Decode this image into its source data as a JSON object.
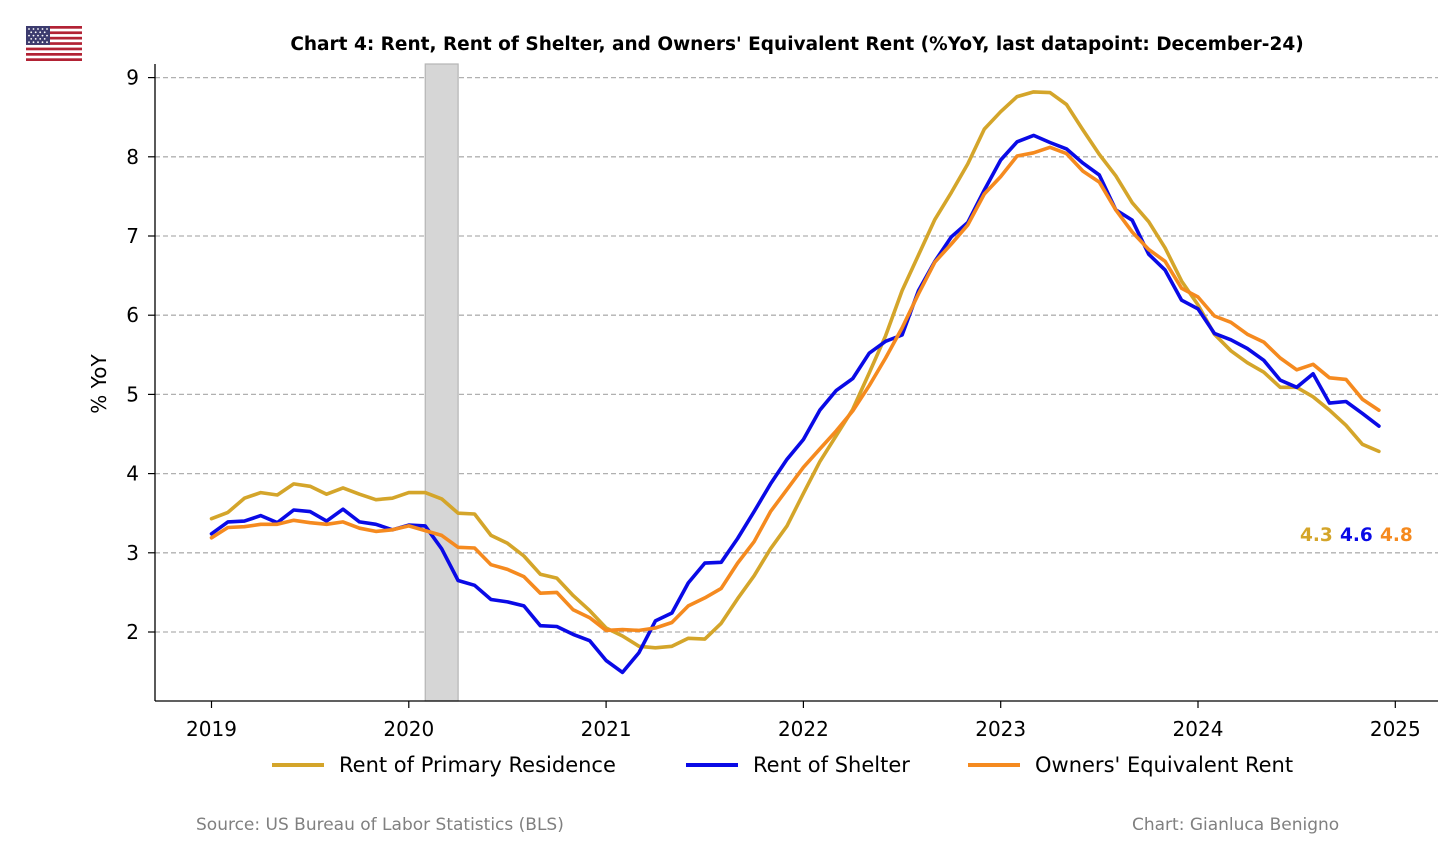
{
  "flag_icon": "us-flag-icon",
  "footer": {
    "source": "Source: US Bureau of Labor Statistics (BLS)",
    "credit": "Chart: Gianluca Benigno"
  },
  "chart_data": {
    "type": "line",
    "title": "Chart 4: Rent, Rent of Shelter, and Owners' Equivalent Rent (%YoY, last datapoint: December-24)",
    "xlabel": "",
    "ylabel": "% YoY",
    "x_ticks": [
      "2019",
      "2020",
      "2021",
      "2022",
      "2023",
      "2024",
      "2025"
    ],
    "y_ticks": [
      "2",
      "3",
      "4",
      "5",
      "6",
      "7",
      "8",
      "9"
    ],
    "ylim": [
      1.1,
      9.2
    ],
    "x_start": "Jan-2019",
    "x_end": "Dec-2024",
    "grid": "horizontal dashed",
    "legend_position": "bottom",
    "recession_shading": [
      "Feb-2020",
      "Apr-2020"
    ],
    "series": [
      {
        "name": "Rent of Primary Residence",
        "color": "#D4A52A",
        "last_value_label": "4.3",
        "values": [
          3.43,
          3.51,
          3.69,
          3.76,
          3.73,
          3.87,
          3.84,
          3.74,
          3.82,
          3.74,
          3.67,
          3.69,
          3.76,
          3.76,
          3.68,
          3.5,
          3.49,
          3.22,
          3.12,
          2.96,
          2.73,
          2.68,
          2.46,
          2.27,
          2.05,
          1.95,
          1.82,
          1.8,
          1.82,
          1.92,
          1.91,
          2.11,
          2.42,
          2.71,
          3.05,
          3.34,
          3.75,
          4.15,
          4.48,
          4.81,
          5.27,
          5.74,
          6.31,
          6.76,
          7.21,
          7.55,
          7.91,
          8.35,
          8.57,
          8.76,
          8.82,
          8.81,
          8.66,
          8.34,
          8.03,
          7.76,
          7.42,
          7.18,
          6.85,
          6.43,
          6.13,
          5.76,
          5.55,
          5.4,
          5.28,
          5.09,
          5.09,
          4.97,
          4.8,
          4.61,
          4.37,
          4.28
        ]
      },
      {
        "name": "Rent of Shelter",
        "color": "#0A0AE6",
        "last_value_label": "4.6",
        "values": [
          3.24,
          3.39,
          3.4,
          3.47,
          3.38,
          3.54,
          3.52,
          3.4,
          3.55,
          3.39,
          3.36,
          3.29,
          3.35,
          3.34,
          3.05,
          2.65,
          2.59,
          2.41,
          2.38,
          2.33,
          2.08,
          2.07,
          1.97,
          1.89,
          1.64,
          1.49,
          1.74,
          2.14,
          2.24,
          2.62,
          2.87,
          2.88,
          3.18,
          3.52,
          3.87,
          4.18,
          4.43,
          4.8,
          5.05,
          5.2,
          5.52,
          5.67,
          5.75,
          6.31,
          6.68,
          6.99,
          7.17,
          7.58,
          7.96,
          8.19,
          8.27,
          8.18,
          8.1,
          7.92,
          7.77,
          7.33,
          7.2,
          6.77,
          6.57,
          6.19,
          6.08,
          5.77,
          5.69,
          5.58,
          5.43,
          5.18,
          5.09,
          5.26,
          4.89,
          4.91,
          4.76,
          4.6
        ]
      },
      {
        "name": "Owners' Equivalent Rent",
        "color": "#F58A1F",
        "last_value_label": "4.8",
        "values": [
          3.19,
          3.32,
          3.33,
          3.36,
          3.36,
          3.41,
          3.38,
          3.36,
          3.39,
          3.31,
          3.27,
          3.29,
          3.34,
          3.28,
          3.22,
          3.07,
          3.06,
          2.85,
          2.79,
          2.7,
          2.49,
          2.5,
          2.28,
          2.18,
          2.02,
          2.03,
          2.02,
          2.05,
          2.12,
          2.33,
          2.43,
          2.55,
          2.87,
          3.14,
          3.52,
          3.8,
          4.08,
          4.31,
          4.54,
          4.79,
          5.11,
          5.46,
          5.84,
          6.27,
          6.67,
          6.9,
          7.14,
          7.53,
          7.75,
          8.01,
          8.05,
          8.12,
          8.04,
          7.82,
          7.68,
          7.33,
          7.05,
          6.83,
          6.68,
          6.34,
          6.23,
          5.99,
          5.91,
          5.76,
          5.66,
          5.46,
          5.31,
          5.38,
          5.21,
          5.19,
          4.94,
          4.8
        ]
      }
    ]
  }
}
